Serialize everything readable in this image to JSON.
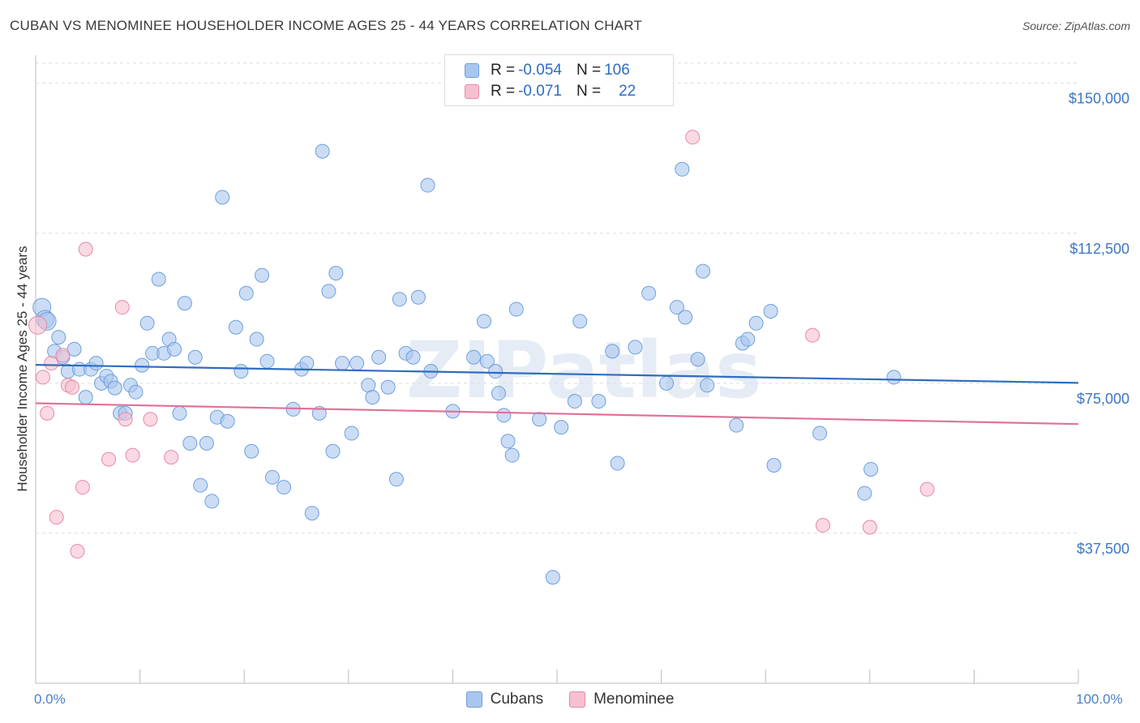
{
  "title": "CUBAN VS MENOMINEE HOUSEHOLDER INCOME AGES 25 - 44 YEARS CORRELATION CHART",
  "source": "Source: ZipAtlas.com",
  "watermark": "ZIPatlas",
  "legend": {
    "rows": [
      {
        "r_label": "R =",
        "r_value": "-0.054",
        "n_label": "N =",
        "n_value": "106",
        "color": "#a9c6ef",
        "border": "#6f9fdc"
      },
      {
        "r_label": "R =",
        "r_value": "-0.071",
        "n_label": "N =",
        "n_value": "22",
        "color": "#f7c0d0",
        "border": "#e889a6"
      }
    ]
  },
  "bottom_legend": {
    "cubans": "Cubans",
    "menominee": "Menominee"
  },
  "chart_data": {
    "type": "scatter",
    "ylabel": "Householder Income Ages 25 - 44 years",
    "xlabel": "",
    "xlim": [
      0,
      100
    ],
    "ylim": [
      0,
      155000
    ],
    "x_tick_labels": [
      "0.0%",
      "100.0%"
    ],
    "y_ticks": [
      37500,
      75000,
      112500,
      150000
    ],
    "y_tick_labels": [
      "$37,500",
      "$75,000",
      "$112,500",
      "$150,000"
    ],
    "grid": true,
    "series": [
      {
        "name": "Cubans",
        "color": "#a9c6ef",
        "stroke": "#6f9fdc",
        "trend": {
          "x": [
            0,
            100
          ],
          "y": [
            79600,
            75100
          ],
          "color": "#2f6cc0"
        },
        "points": [
          [
            0.6,
            94000
          ],
          [
            0.9,
            91000
          ],
          [
            1.1,
            90500
          ],
          [
            1.8,
            83000
          ],
          [
            2.2,
            86500
          ],
          [
            2.6,
            81500
          ],
          [
            3.1,
            78000
          ],
          [
            3.7,
            83500
          ],
          [
            4.2,
            78500
          ],
          [
            4.8,
            71500
          ],
          [
            5.3,
            78500
          ],
          [
            5.8,
            80000
          ],
          [
            6.3,
            75000
          ],
          [
            6.8,
            76800
          ],
          [
            7.2,
            75500
          ],
          [
            7.6,
            73800
          ],
          [
            8.1,
            67500
          ],
          [
            8.6,
            67500
          ],
          [
            9.1,
            74500
          ],
          [
            9.6,
            72800
          ],
          [
            10.2,
            79500
          ],
          [
            10.7,
            90000
          ],
          [
            11.2,
            82500
          ],
          [
            11.8,
            101000
          ],
          [
            12.3,
            82500
          ],
          [
            12.8,
            86000
          ],
          [
            13.3,
            83500
          ],
          [
            13.8,
            67500
          ],
          [
            14.3,
            95000
          ],
          [
            14.8,
            60000
          ],
          [
            15.3,
            81500
          ],
          [
            15.8,
            49500
          ],
          [
            16.4,
            60000
          ],
          [
            16.9,
            45500
          ],
          [
            17.4,
            66500
          ],
          [
            17.9,
            121500
          ],
          [
            18.4,
            65500
          ],
          [
            19.2,
            89000
          ],
          [
            19.7,
            78000
          ],
          [
            20.2,
            97500
          ],
          [
            20.7,
            58000
          ],
          [
            21.2,
            86000
          ],
          [
            21.7,
            102000
          ],
          [
            22.2,
            80500
          ],
          [
            22.7,
            51500
          ],
          [
            23.8,
            49000
          ],
          [
            24.7,
            68500
          ],
          [
            25.5,
            78500
          ],
          [
            26.0,
            80000
          ],
          [
            26.5,
            42500
          ],
          [
            27.2,
            67500
          ],
          [
            27.5,
            133000
          ],
          [
            28.1,
            98000
          ],
          [
            28.5,
            58000
          ],
          [
            28.8,
            102500
          ],
          [
            29.4,
            80000
          ],
          [
            30.3,
            62500
          ],
          [
            30.8,
            80000
          ],
          [
            31.9,
            74500
          ],
          [
            32.3,
            71500
          ],
          [
            32.9,
            81500
          ],
          [
            33.8,
            74000
          ],
          [
            34.6,
            51000
          ],
          [
            34.9,
            96000
          ],
          [
            35.5,
            82500
          ],
          [
            36.2,
            81500
          ],
          [
            36.7,
            96500
          ],
          [
            37.6,
            124500
          ],
          [
            37.9,
            78000
          ],
          [
            40.0,
            68000
          ],
          [
            42.0,
            81500
          ],
          [
            43.0,
            90500
          ],
          [
            43.3,
            80500
          ],
          [
            44.1,
            78000
          ],
          [
            44.4,
            72500
          ],
          [
            44.9,
            67000
          ],
          [
            45.3,
            60500
          ],
          [
            45.7,
            57000
          ],
          [
            46.1,
            93500
          ],
          [
            48.3,
            66000
          ],
          [
            49.6,
            26500
          ],
          [
            50.4,
            64000
          ],
          [
            51.7,
            70500
          ],
          [
            52.2,
            90500
          ],
          [
            54.0,
            70500
          ],
          [
            55.3,
            83000
          ],
          [
            55.8,
            55000
          ],
          [
            57.5,
            84000
          ],
          [
            58.8,
            97500
          ],
          [
            60.5,
            75000
          ],
          [
            61.5,
            94000
          ],
          [
            62.0,
            128500
          ],
          [
            62.3,
            91500
          ],
          [
            63.5,
            81000
          ],
          [
            64.0,
            103000
          ],
          [
            64.4,
            74500
          ],
          [
            67.2,
            64500
          ],
          [
            67.8,
            85000
          ],
          [
            68.3,
            86000
          ],
          [
            69.1,
            90000
          ],
          [
            70.5,
            93000
          ],
          [
            70.8,
            54500
          ],
          [
            75.2,
            62500
          ],
          [
            79.5,
            47500
          ],
          [
            80.1,
            53500
          ],
          [
            82.3,
            76500
          ]
        ]
      },
      {
        "name": "Menominee",
        "color": "#f7c0d0",
        "stroke": "#e889a6",
        "trend": {
          "x": [
            0,
            100
          ],
          "y": [
            70000,
            64800
          ],
          "color": "#e0729a"
        },
        "points": [
          [
            0.2,
            89500
          ],
          [
            0.7,
            76500
          ],
          [
            1.1,
            67500
          ],
          [
            1.5,
            80000
          ],
          [
            2.0,
            41500
          ],
          [
            2.6,
            82000
          ],
          [
            3.1,
            74500
          ],
          [
            3.5,
            74000
          ],
          [
            4.0,
            33000
          ],
          [
            4.5,
            49000
          ],
          [
            4.8,
            108500
          ],
          [
            7.0,
            56000
          ],
          [
            8.3,
            94000
          ],
          [
            8.6,
            66000
          ],
          [
            9.3,
            57000
          ],
          [
            11.0,
            66000
          ],
          [
            13.0,
            56500
          ],
          [
            63.0,
            136500
          ],
          [
            74.5,
            87000
          ],
          [
            75.5,
            39500
          ],
          [
            80.0,
            39000
          ],
          [
            85.5,
            48500
          ]
        ]
      }
    ]
  }
}
